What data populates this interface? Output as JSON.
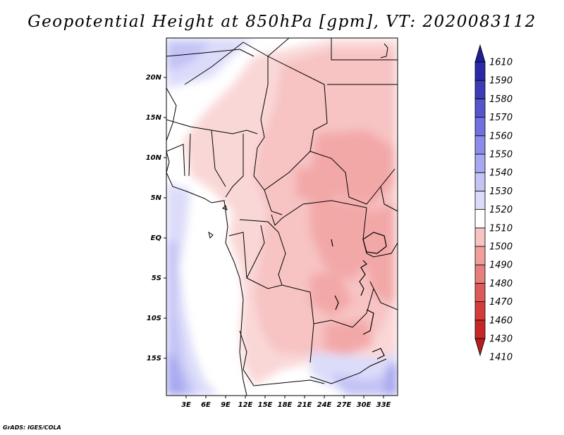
{
  "title": "Geopotential Height at 850hPa [gpm], VT: 2020083112",
  "credit": "GrADS: IGES/COLA",
  "map": {
    "lon_labels": [
      "3E",
      "6E",
      "9E",
      "12E",
      "15E",
      "18E",
      "21E",
      "24E",
      "27E",
      "30E",
      "33E"
    ],
    "lat_labels": [
      "20N",
      "15N",
      "10N",
      "5N",
      "EQ",
      "5S",
      "10S",
      "15S"
    ]
  },
  "colorbar": {
    "levels": [
      "1410",
      "1430",
      "1460",
      "1470",
      "1480",
      "1490",
      "1500",
      "1510",
      "1520",
      "1530",
      "1540",
      "1550",
      "1560",
      "1570",
      "1580",
      "1590",
      "1610"
    ],
    "colors_bottom_to_top": [
      "#b41e1e",
      "#c62828",
      "#d43c3c",
      "#de5a5a",
      "#e77e7e",
      "#f09f9f",
      "#f7c3c3",
      "#ffffff",
      "#dcdcfa",
      "#c3c3f5",
      "#a8a8f0",
      "#8c8ceb",
      "#7070e0",
      "#5555cc",
      "#3c3cb8",
      "#2a2aa8",
      "#1e1e96"
    ]
  }
}
